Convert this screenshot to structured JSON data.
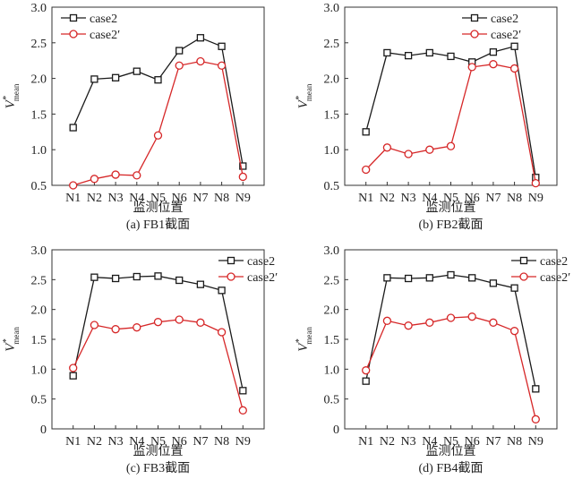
{
  "colors": {
    "case2": "#1a1a1a",
    "case2p": "#d62728",
    "axis": "#333333"
  },
  "legend_labels": [
    "case2",
    "case2′"
  ],
  "chart_data": [
    {
      "type": "line",
      "caption": "(a) FB1截面",
      "xlabel": "监测位置",
      "ylabel": "V*mean",
      "categories": [
        "N1",
        "N2",
        "N3",
        "N4",
        "N5",
        "N6",
        "N7",
        "N8",
        "N9"
      ],
      "ylim": [
        0.5,
        3.0
      ],
      "yticks": [
        "0.5",
        "1.0",
        "1.5",
        "2.0",
        "2.5",
        "3.0"
      ],
      "legend_position": "top-left",
      "series": [
        {
          "name": "case2",
          "values": [
            1.31,
            1.99,
            2.01,
            2.1,
            1.98,
            2.39,
            2.57,
            2.45,
            0.77
          ]
        },
        {
          "name": "case2′",
          "values": [
            0.5,
            0.59,
            0.65,
            0.64,
            1.2,
            2.18,
            2.24,
            2.18,
            0.62
          ]
        }
      ]
    },
    {
      "type": "line",
      "caption": "(b) FB2截面",
      "xlabel": "监测位置",
      "ylabel": "V*mean",
      "categories": [
        "N1",
        "N2",
        "N3",
        "N4",
        "N5",
        "N6",
        "N7",
        "N8",
        "N9"
      ],
      "ylim": [
        0.5,
        3.0
      ],
      "yticks": [
        "0.5",
        "1.0",
        "1.5",
        "2.0",
        "2.5",
        "3.0"
      ],
      "legend_position": "top-right",
      "series": [
        {
          "name": "case2",
          "values": [
            1.25,
            2.36,
            2.32,
            2.36,
            2.31,
            2.23,
            2.37,
            2.45,
            0.61
          ]
        },
        {
          "name": "case2′",
          "values": [
            0.72,
            1.03,
            0.94,
            1.0,
            1.05,
            2.16,
            2.2,
            2.14,
            0.53
          ]
        }
      ]
    },
    {
      "type": "line",
      "caption": "(c) FB3截面",
      "xlabel": "监测位置",
      "ylabel": "V*mean",
      "categories": [
        "N1",
        "N2",
        "N3",
        "N4",
        "N5",
        "N6",
        "N7",
        "N8",
        "N9"
      ],
      "ylim": [
        0,
        3.0
      ],
      "yticks": [
        "0",
        "0.5",
        "1.0",
        "1.5",
        "2.0",
        "2.5",
        "3.0"
      ],
      "legend_position": "top-right",
      "series": [
        {
          "name": "case2",
          "values": [
            0.89,
            2.54,
            2.52,
            2.55,
            2.56,
            2.49,
            2.42,
            2.32,
            0.64
          ]
        },
        {
          "name": "case2′",
          "values": [
            1.02,
            1.74,
            1.67,
            1.7,
            1.79,
            1.83,
            1.78,
            1.62,
            0.31
          ]
        }
      ]
    },
    {
      "type": "line",
      "caption": "(d) FB4截面",
      "xlabel": "监测位置",
      "ylabel": "V*mean",
      "categories": [
        "N1",
        "N2",
        "N3",
        "N4",
        "N5",
        "N6",
        "N7",
        "N8",
        "N9"
      ],
      "ylim": [
        0,
        3.0
      ],
      "yticks": [
        "0",
        "0.5",
        "1.0",
        "1.5",
        "2.0",
        "2.5",
        "3.0"
      ],
      "legend_position": "top-right",
      "series": [
        {
          "name": "case2",
          "values": [
            0.8,
            2.53,
            2.52,
            2.53,
            2.58,
            2.53,
            2.44,
            2.36,
            0.67
          ]
        },
        {
          "name": "case2′",
          "values": [
            0.98,
            1.81,
            1.73,
            1.78,
            1.86,
            1.88,
            1.78,
            1.64,
            0.16
          ]
        }
      ]
    }
  ]
}
